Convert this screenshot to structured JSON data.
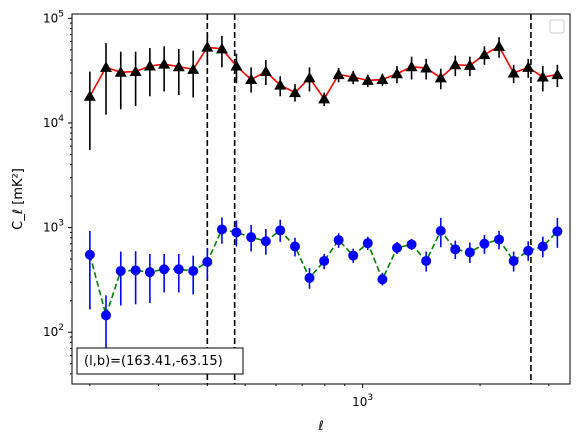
{
  "chart_data": {
    "type": "scatter",
    "xlabel": "ℓ",
    "ylabel": "C_ℓ  [mK²]",
    "xscale": "log",
    "yscale": "log",
    "xlim": [
      180,
      3400
    ],
    "ylim": [
      32,
      110000
    ],
    "x_tick_labels": [
      {
        "value": 1000,
        "base": "10",
        "exp": "3"
      }
    ],
    "y_tick_labels": [
      {
        "value": 100,
        "base": "10",
        "exp": "2"
      },
      {
        "value": 1000,
        "base": "10",
        "exp": "3"
      },
      {
        "value": 10000,
        "base": "10",
        "exp": "4"
      },
      {
        "value": 100000,
        "base": "10",
        "exp": "5"
      }
    ],
    "grid": false,
    "legend": {
      "placement": "top-right",
      "entries": []
    },
    "annotation": {
      "text": "(l,b)=(163.41,-63.15)",
      "placement": "bottom-left"
    },
    "vlines": [
      400,
      470,
      2700
    ],
    "series": [
      {
        "marker": "triangle",
        "marker_color": "#000000",
        "line_color": "#ff0000",
        "line_style": "solid",
        "errorbar_color": "#000000",
        "x": [
          200,
          220,
          240,
          262,
          285,
          310,
          338,
          368,
          400,
          436,
          475,
          518,
          565,
          615,
          671,
          731,
          797,
          868,
          946,
          1031,
          1124,
          1225,
          1335,
          1455,
          1586,
          1728,
          1883,
          2052,
          2237,
          2438,
          2657,
          2896,
          3156
        ],
        "y": [
          18000,
          34000,
          30500,
          31000,
          35000,
          36500,
          34500,
          32500,
          53000,
          51000,
          35000,
          26000,
          31000,
          23000,
          19500,
          27000,
          17000,
          29000,
          27500,
          25500,
          26000,
          29500,
          34500,
          33500,
          27000,
          36000,
          35500,
          45000,
          54000,
          30000,
          34000,
          27500,
          29000
        ],
        "yerr_low": [
          5500,
          12000,
          13500,
          14500,
          18000,
          20000,
          18500,
          17500,
          36000,
          34000,
          24000,
          19500,
          23000,
          18000,
          16000,
          20000,
          14500,
          24500,
          23500,
          22000,
          22500,
          24000,
          26000,
          26000,
          21000,
          28000,
          28000,
          36000,
          42000,
          24000,
          27000,
          20000,
          22000
        ],
        "yerr_high": [
          31000,
          58000,
          48000,
          48000,
          52000,
          54000,
          51000,
          49000,
          70000,
          68000,
          46000,
          34000,
          40000,
          28000,
          23500,
          34000,
          19500,
          33500,
          31500,
          29000,
          29500,
          35000,
          43000,
          41000,
          33000,
          44000,
          43000,
          54000,
          66000,
          36000,
          41000,
          35000,
          36000
        ]
      },
      {
        "marker": "circle",
        "marker_color": "#0000ff",
        "line_color": "#008000",
        "line_style": "dashed",
        "errorbar_color": "#0000ff",
        "x": [
          200,
          220,
          240,
          262,
          285,
          310,
          338,
          368,
          400,
          436,
          475,
          518,
          565,
          615,
          671,
          731,
          797,
          868,
          946,
          1031,
          1124,
          1225,
          1335,
          1455,
          1586,
          1728,
          1883,
          2052,
          2237,
          2438,
          2657,
          2896,
          3156
        ],
        "y": [
          550,
          145,
          385,
          390,
          375,
          400,
          400,
          385,
          470,
          960,
          900,
          810,
          740,
          940,
          660,
          330,
          480,
          760,
          540,
          710,
          320,
          640,
          690,
          480,
          930,
          620,
          580,
          700,
          770,
          480,
          600,
          660,
          920
        ],
        "yerr_low": [
          165,
          65,
          180,
          185,
          190,
          240,
          240,
          230,
          320,
          700,
          660,
          590,
          550,
          730,
          530,
          260,
          400,
          640,
          460,
          610,
          280,
          560,
          610,
          380,
          650,
          500,
          460,
          560,
          620,
          380,
          480,
          520,
          640
        ],
        "yerr_high": [
          930,
          225,
          590,
          595,
          560,
          560,
          560,
          540,
          640,
          1250,
          1170,
          1060,
          970,
          1190,
          800,
          410,
          560,
          880,
          630,
          820,
          370,
          730,
          780,
          590,
          1240,
          750,
          720,
          850,
          930,
          590,
          740,
          820,
          1240
        ]
      }
    ]
  }
}
